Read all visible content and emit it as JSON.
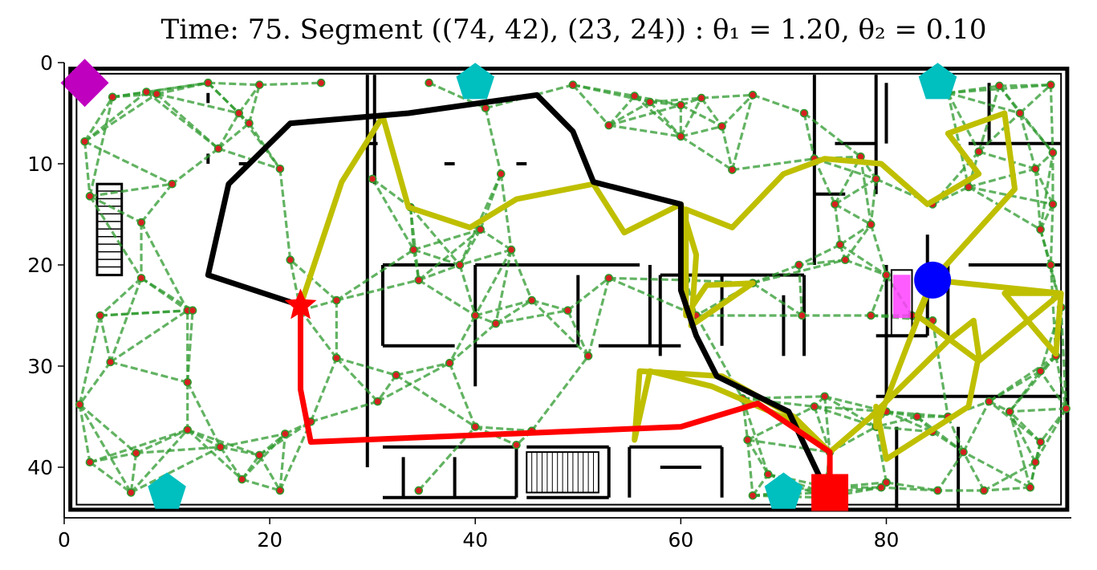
{
  "chart_data": {
    "type": "scatter",
    "title": "Time: 75. Segment ((74, 42), (23, 24)) : θ₁ = 1.20,  θ₂ = 0.10",
    "xlabel": "",
    "ylabel": "",
    "xlim": [
      0,
      98
    ],
    "ylim": [
      45,
      0
    ],
    "y_axis_inverted": true,
    "x_ticks": [
      0,
      20,
      40,
      60,
      80
    ],
    "y_ticks": [
      0,
      10,
      20,
      30,
      40
    ],
    "grid": false,
    "background": "floor-plan map (walls, rooms, stairs)",
    "colors": {
      "roadmap_edge": "#2e9a2e",
      "roadmap_node": "#d62020",
      "roadmap_node_edge": "#2e9a2e",
      "black_path": "#000000",
      "yellow_path": "#bfbf00",
      "red_path": "#ff0000",
      "goal_marker": "#0000ff",
      "start_marker": "#ff0000",
      "current_marker": "#ff0000",
      "target_marker": "#bf00bf",
      "sensor_markers": "#00bfbf",
      "obstacle_fill": "#ff40ff",
      "wall": "#000000"
    },
    "roadmap_nodes": [
      [
        2,
        7.8
      ],
      [
        2.5,
        13.2
      ],
      [
        4.7,
        3.4
      ],
      [
        8,
        2.9
      ],
      [
        9,
        3.1
      ],
      [
        14,
        2
      ],
      [
        15,
        8.5
      ],
      [
        17,
        5
      ],
      [
        18,
        6
      ],
      [
        19,
        2.2
      ],
      [
        21,
        10.5
      ],
      [
        25,
        2
      ],
      [
        10.5,
        12
      ],
      [
        7.5,
        15.8
      ],
      [
        7.5,
        21.3
      ],
      [
        3.5,
        25
      ],
      [
        4.5,
        29.6
      ],
      [
        1.5,
        33.8
      ],
      [
        2.5,
        39.5
      ],
      [
        7,
        38.6
      ],
      [
        6.5,
        42.5
      ],
      [
        12,
        31.6
      ],
      [
        12,
        24.5
      ],
      [
        12.5,
        24.5
      ],
      [
        12,
        36.3
      ],
      [
        15.2,
        38
      ],
      [
        17.3,
        41.2
      ],
      [
        19,
        38.8
      ],
      [
        21,
        42.3
      ],
      [
        21.5,
        36.7
      ],
      [
        24,
        35.5
      ],
      [
        23,
        24.5
      ],
      [
        26.5,
        23.5
      ],
      [
        26.5,
        29.2
      ],
      [
        22,
        19.5
      ],
      [
        30,
        11.5
      ],
      [
        33.7,
        14.3
      ],
      [
        34,
        18.5
      ],
      [
        34.5,
        21.5
      ],
      [
        32.3,
        30.9
      ],
      [
        30.5,
        33.5
      ],
      [
        34.5,
        42.3
      ],
      [
        35.5,
        2
      ],
      [
        41,
        4.5
      ],
      [
        42.5,
        11
      ],
      [
        43.5,
        18.5
      ],
      [
        40.5,
        16.5
      ],
      [
        38.5,
        20
      ],
      [
        40,
        25
      ],
      [
        37.5,
        29.7
      ],
      [
        40,
        36
      ],
      [
        42,
        25.8
      ],
      [
        45.5,
        23.5
      ],
      [
        45.5,
        36.4
      ],
      [
        44,
        37.8
      ],
      [
        49.5,
        2.2
      ],
      [
        53,
        6.2
      ],
      [
        51,
        29
      ],
      [
        49,
        24.5
      ],
      [
        53,
        21.3
      ],
      [
        55.5,
        3.3
      ],
      [
        57,
        3.9
      ],
      [
        60,
        4.2
      ],
      [
        60,
        7.3
      ],
      [
        62,
        3.5
      ],
      [
        64,
        6.3
      ],
      [
        65,
        10.6
      ],
      [
        67,
        21.8
      ],
      [
        67,
        3.2
      ],
      [
        61.5,
        25
      ],
      [
        60.5,
        21.5
      ],
      [
        66,
        33.2
      ],
      [
        66.5,
        37.3
      ],
      [
        67,
        42.8
      ],
      [
        68.5,
        40.7
      ],
      [
        74,
        43
      ],
      [
        74.5,
        42
      ],
      [
        74,
        33
      ],
      [
        72,
        5
      ],
      [
        73,
        9.5
      ],
      [
        75,
        14
      ],
      [
        75.5,
        18
      ],
      [
        76,
        19.5
      ],
      [
        71.5,
        20
      ],
      [
        71.8,
        25
      ],
      [
        73,
        34
      ],
      [
        74.5,
        38.5
      ],
      [
        74,
        42.5
      ],
      [
        77.5,
        9.3
      ],
      [
        79,
        11.5
      ],
      [
        78.5,
        16
      ],
      [
        80,
        21
      ],
      [
        78.5,
        25
      ],
      [
        80,
        34.5
      ],
      [
        80,
        41.5
      ],
      [
        82.5,
        25
      ],
      [
        83,
        35
      ],
      [
        84.5,
        36.5
      ],
      [
        84.5,
        14
      ],
      [
        84.5,
        25.5
      ],
      [
        86,
        3
      ],
      [
        88,
        12.3
      ],
      [
        89,
        8.8
      ],
      [
        91,
        2.3
      ],
      [
        93,
        5
      ],
      [
        94.5,
        10.5
      ],
      [
        95,
        16.5
      ],
      [
        96,
        2.2
      ],
      [
        96.2,
        8.9
      ],
      [
        96.2,
        14
      ],
      [
        96,
        20
      ],
      [
        97,
        24.2
      ],
      [
        96.5,
        29
      ],
      [
        97.5,
        34.2
      ],
      [
        95,
        37.5
      ],
      [
        94.5,
        39.5
      ],
      [
        94,
        42
      ],
      [
        89.5,
        42.3
      ],
      [
        87.5,
        38.5
      ],
      [
        85,
        42.3
      ],
      [
        86,
        35
      ],
      [
        90,
        33.5
      ],
      [
        92,
        34.5
      ],
      [
        95,
        30.5
      ],
      [
        79.5,
        42
      ],
      [
        79,
        36
      ]
    ],
    "series": [
      {
        "name": "",
        "color": "#000000",
        "points": [
          [
            74,
            42
          ],
          [
            74,
            42
          ],
          [
            70.5,
            34.5
          ],
          [
            63.5,
            31
          ],
          [
            61.5,
            27
          ],
          [
            60,
            22.5
          ],
          [
            60,
            14
          ],
          [
            51.5,
            11.8
          ],
          [
            49.5,
            6.8
          ],
          [
            46,
            3.2
          ],
          [
            33.5,
            5
          ],
          [
            22,
            6
          ],
          [
            16,
            12
          ],
          [
            14,
            21
          ],
          [
            23,
            24
          ]
        ]
      },
      {
        "name": "",
        "color": "#bfbf00",
        "points": [
          [
            74.5,
            38.5
          ],
          [
            71,
            35.5
          ],
          [
            63,
            32
          ],
          [
            57,
            30.5
          ],
          [
            55.5,
            37.3
          ],
          [
            55.5,
            37.3
          ],
          [
            56,
            30.5
          ],
          [
            64,
            31
          ],
          [
            71,
            35
          ],
          [
            74.5,
            38.5
          ],
          [
            78.5,
            35
          ],
          [
            86,
            27.5
          ],
          [
            88.5,
            25.5
          ],
          [
            89,
            29
          ],
          [
            88,
            34
          ],
          [
            80,
            39.2
          ],
          [
            79,
            34
          ],
          [
            79,
            36
          ],
          [
            84.5,
            21.5
          ],
          [
            83,
            25
          ],
          [
            89,
            29.5
          ],
          [
            97,
            22.8
          ],
          [
            91.5,
            22.8
          ],
          [
            96.5,
            28.8
          ],
          [
            97,
            22.8
          ],
          [
            84.5,
            21.5
          ],
          [
            92.5,
            12.5
          ],
          [
            91.5,
            5
          ],
          [
            86,
            7
          ],
          [
            89,
            11
          ],
          [
            84,
            14
          ],
          [
            79.5,
            10
          ],
          [
            74,
            9.5
          ],
          [
            70,
            11
          ],
          [
            65,
            16.3
          ],
          [
            60.5,
            14.5
          ],
          [
            60.5,
            25
          ],
          [
            62.5,
            22
          ],
          [
            67,
            21.8
          ],
          [
            61,
            26
          ],
          [
            61.5,
            19
          ],
          [
            60,
            14
          ],
          [
            54.5,
            16.8
          ],
          [
            51.5,
            12
          ],
          [
            44,
            13.5
          ],
          [
            39.5,
            16.3
          ],
          [
            33.5,
            14.3
          ],
          [
            31,
            5.3
          ],
          [
            27,
            11.8
          ],
          [
            23,
            24
          ]
        ]
      },
      {
        "name": "",
        "color": "#ff0000",
        "points": [
          [
            23,
            24
          ],
          [
            23,
            32.3
          ],
          [
            24,
            37.5
          ],
          [
            60,
            36
          ],
          [
            67.5,
            33.7
          ],
          [
            74.5,
            38.5
          ],
          [
            74.5,
            42
          ]
        ]
      }
    ],
    "markers": [
      {
        "shape": "diamond",
        "color": "#bf00bf",
        "x": 2,
        "y": 2
      },
      {
        "shape": "pentagon",
        "color": "#00bfbf",
        "x": 40,
        "y": 2
      },
      {
        "shape": "pentagon",
        "color": "#00bfbf",
        "x": 85,
        "y": 2
      },
      {
        "shape": "pentagon",
        "color": "#00bfbf",
        "x": 10,
        "y": 42.5
      },
      {
        "shape": "pentagon",
        "color": "#00bfbf",
        "x": 70,
        "y": 42.5
      },
      {
        "shape": "circle",
        "color": "#0000ff",
        "x": 84.5,
        "y": 21.5
      },
      {
        "shape": "star",
        "color": "#ff0000",
        "x": 23,
        "y": 24
      },
      {
        "shape": "square",
        "color": "#ff0000",
        "x": 74.5,
        "y": 42.5
      }
    ],
    "obstacle_rect": {
      "x0": 80.5,
      "x1": 82.5,
      "y0": 20.5,
      "y1": 27,
      "fill": "#ff40ff"
    }
  }
}
